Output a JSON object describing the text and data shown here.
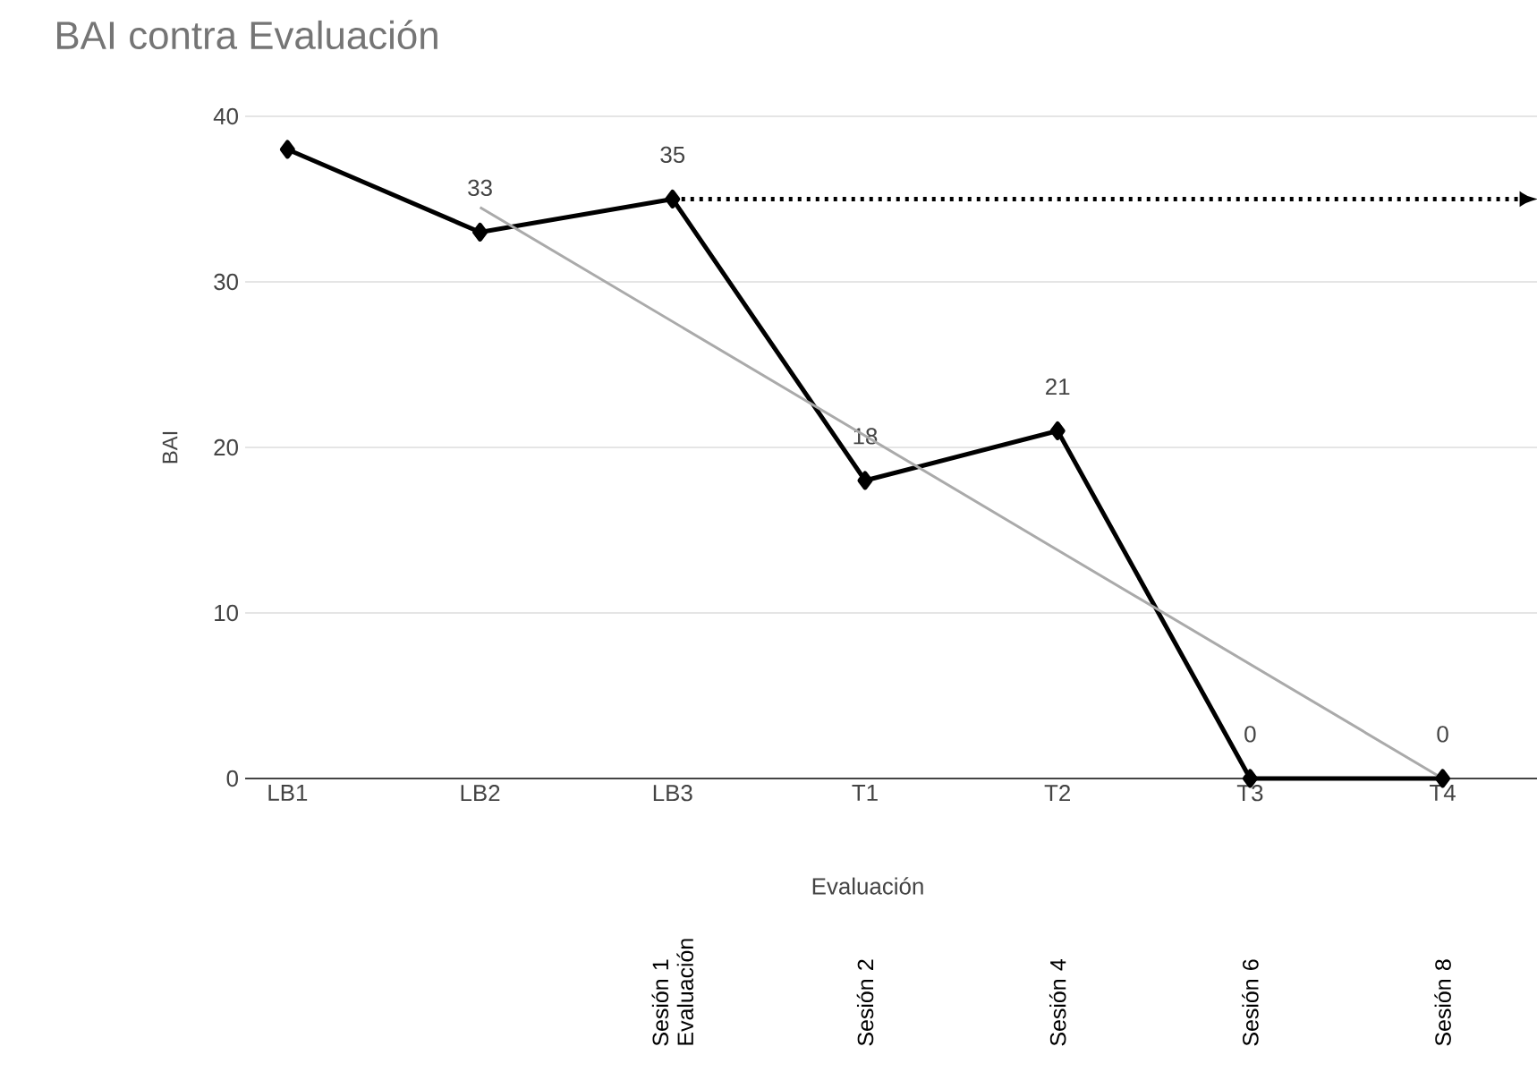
{
  "chart_data": {
    "type": "line",
    "title": "BAI contra Evaluación",
    "xlabel": "Evaluación",
    "ylabel": "BAI",
    "categories": [
      "LB1",
      "LB2",
      "LB3",
      "T1",
      "T2",
      "T3",
      "T4"
    ],
    "series": [
      {
        "color": "#000000",
        "values": [
          38,
          33,
          35,
          18,
          21,
          0,
          0
        ],
        "value_labels": [
          null,
          "33",
          "35",
          "18",
          "21",
          "0",
          "0"
        ],
        "marker": "diamond"
      },
      {
        "type": "line",
        "color": "#aaaaaa",
        "values": [
          null,
          34.5,
          27.6,
          20.7,
          13.8,
          6.9,
          0
        ],
        "marker": "none"
      },
      {
        "type": "line",
        "color": "#000000",
        "values": [
          null,
          null,
          35,
          35,
          35,
          35,
          35
        ],
        "marker": "none",
        "line_style": "dotted"
      }
    ],
    "ylim": [
      0,
      40
    ],
    "yticks": [
      0,
      10,
      20,
      30,
      40
    ],
    "grid": "y",
    "annotations": [
      "Sesión 1 Evaluación",
      "Sesión 2",
      "Sesión 4",
      "Sesión 6",
      "Sesión 8"
    ]
  }
}
